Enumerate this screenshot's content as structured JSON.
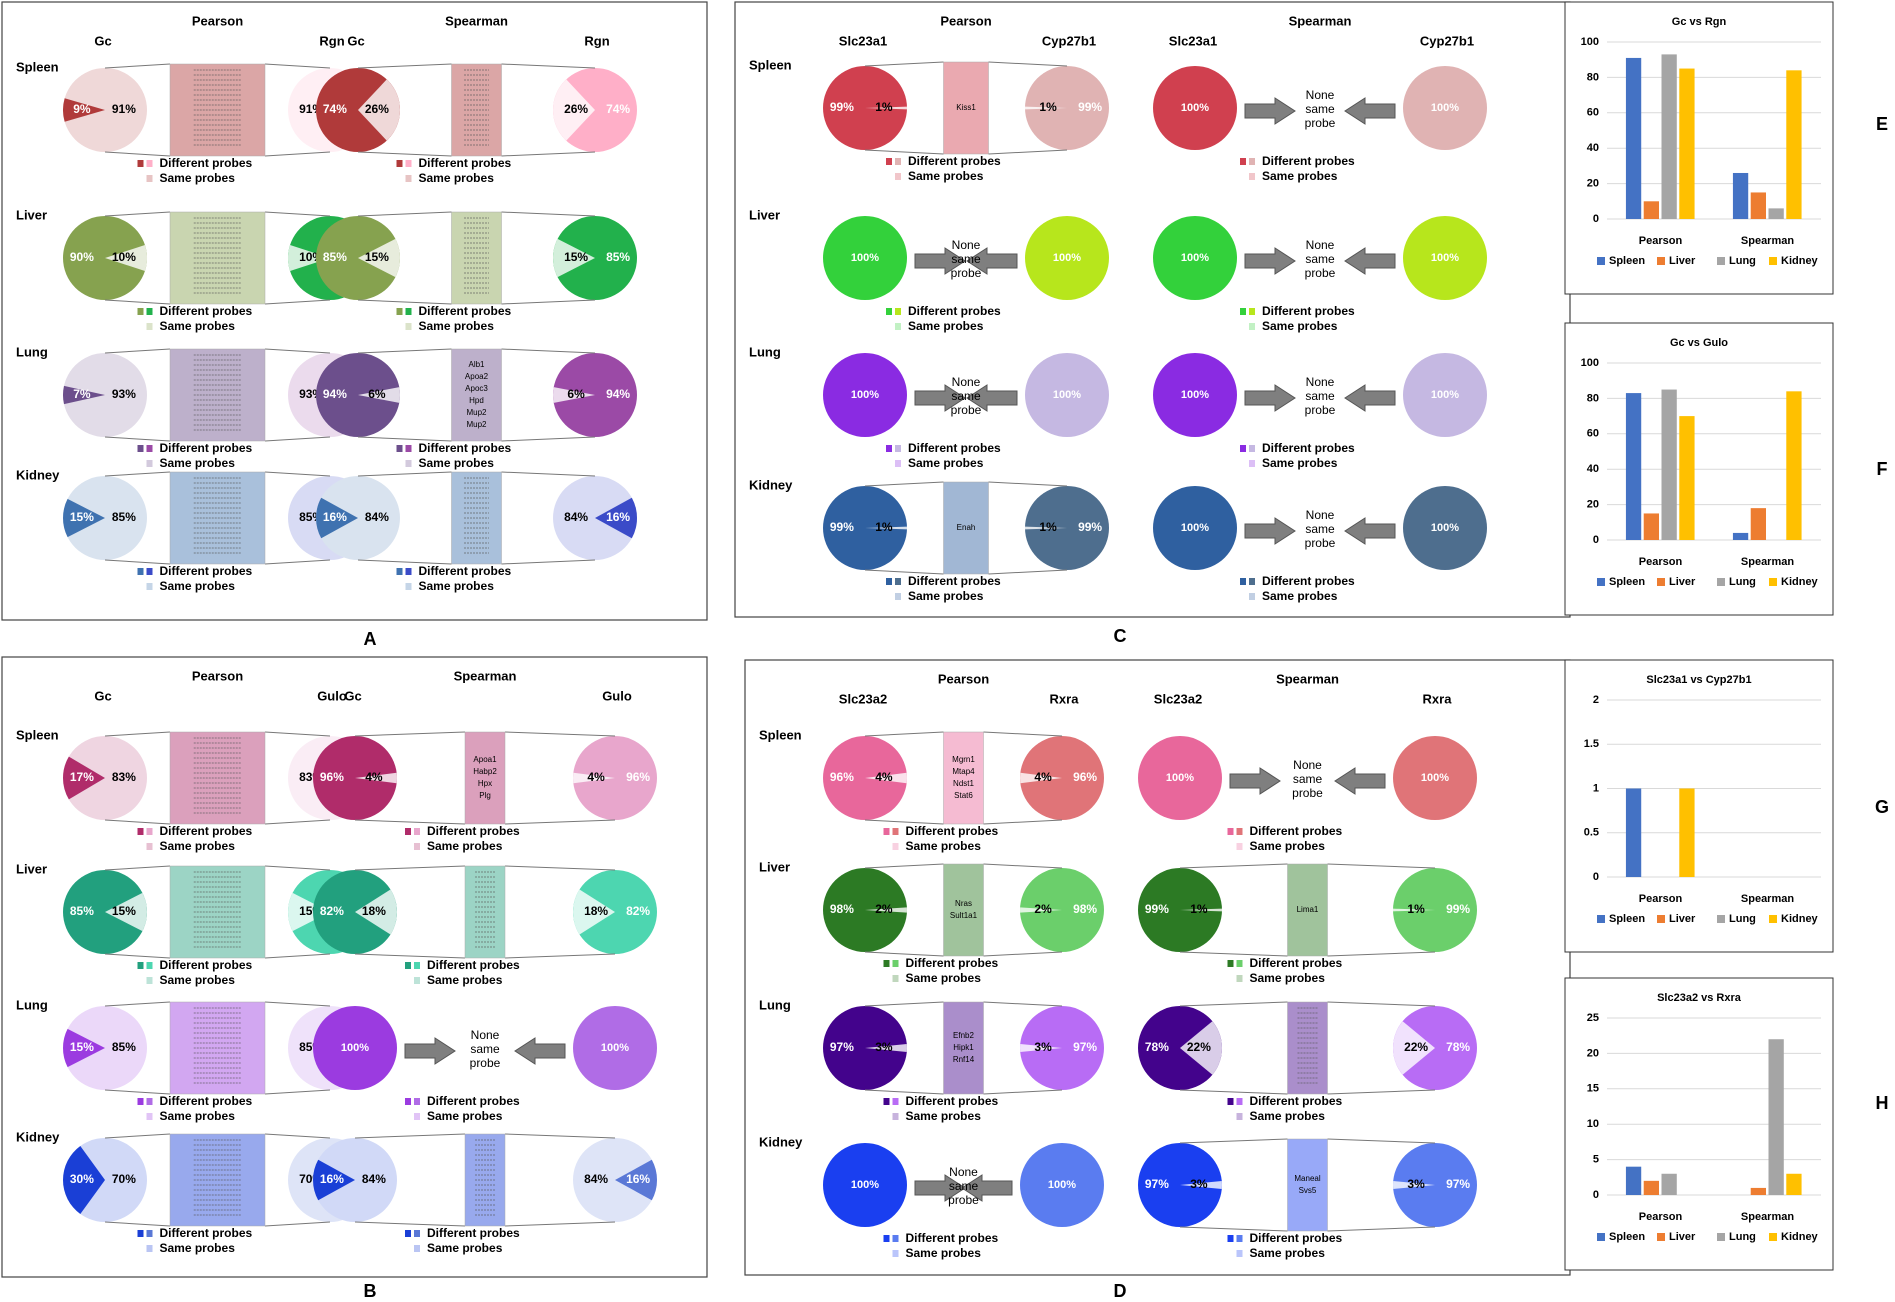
{
  "panel_labels": [
    "A",
    "B",
    "C",
    "D",
    "E",
    "F",
    "G",
    "H"
  ],
  "legend_different": "Different probes",
  "legend_same": "Same probes",
  "none_same_probe": [
    "None",
    "same",
    "probe"
  ],
  "colors": {
    "spleen_A": "#b03a3a",
    "spleen_A2": "#ffafc8",
    "liver_A": "#86a24f",
    "liver_A2": "#22b14c",
    "lung_A": "#6c4f8c",
    "lung_A2": "#9b4aa6",
    "kidney_A": "#3f72b0",
    "kidney_A2": "#3b4bc8",
    "spleen_B": "#b02c6a",
    "spleen_B2": "#e8a6cc",
    "liver_B": "#22a07e",
    "liver_B2": "#4dd6b0",
    "lung_B": "#9b3be0",
    "lung_B2": "#b06ce6",
    "kidney_B": "#1a3fd6",
    "kidney_B2": "#5a78d6",
    "spleen_C": "#d0404f",
    "spleen_C2": "#e0b3b3",
    "liver_C": "#33d13b",
    "liver_C2": "#b7e61c",
    "lung_C": "#8a2be2",
    "lung_C2": "#c5b8e2",
    "kidney_C": "#2f60a0",
    "kidney_C2": "#4e6e8e",
    "spleen_D": "#e8679b",
    "spleen_D2": "#e07478",
    "liver_D": "#2c7a24",
    "liver_D2": "#6bcf6b",
    "lung_D": "#43038c",
    "lung_D2": "#b86cf5",
    "kidney_D": "#1a3ff0",
    "kidney_D2": "#5a7cf0",
    "bar_spleen": "#4472c4",
    "bar_liver": "#ed7d31",
    "bar_lung": "#a5a5a5",
    "bar_kidney": "#ffc000"
  },
  "panels": {
    "A": {
      "methods": [
        "Pearson",
        "Spearman"
      ],
      "genes": [
        "Gc",
        "Rgn"
      ],
      "rows": [
        {
          "tissue": "Spleen",
          "pearson": {
            "left": [
              9,
              91
            ],
            "right": [
              91,
              9
            ],
            "labels": [
              "9%",
              "91%",
              "91%",
              "9%"
            ]
          },
          "spearman": {
            "left": [
              74,
              26
            ],
            "right": [
              26,
              74
            ],
            "labels": [
              "74%",
              "26%",
              "26%",
              "74%"
            ]
          }
        },
        {
          "tissue": "Liver",
          "pearson": {
            "left": [
              90,
              10
            ],
            "right": [
              10,
              90
            ],
            "labels": [
              "90%",
              "10%",
              "10%",
              "90%"
            ]
          },
          "spearman": {
            "left": [
              85,
              15
            ],
            "right": [
              15,
              85
            ],
            "labels": [
              "85%",
              "15%",
              "15%",
              "85%"
            ]
          }
        },
        {
          "tissue": "Lung",
          "pearson": {
            "left": [
              7,
              93
            ],
            "right": [
              93,
              7
            ],
            "labels": [
              "7%",
              "93%",
              "93%",
              "7%"
            ]
          },
          "spearman": {
            "left": [
              94,
              6
            ],
            "right": [
              6,
              94
            ],
            "labels": [
              "94%",
              "6%",
              "6%",
              "94%"
            ],
            "same_genes": [
              "Alb1",
              "Apoa2",
              "Apoc3",
              "Hpd",
              "Mup2",
              "Mup2"
            ]
          }
        },
        {
          "tissue": "Kidney",
          "pearson": {
            "left": [
              15,
              85
            ],
            "right": [
              85,
              15
            ],
            "labels": [
              "15%",
              "85%",
              "85%",
              "15%"
            ]
          },
          "spearman": {
            "left": [
              16,
              84
            ],
            "right": [
              84,
              16
            ],
            "labels": [
              "16%",
              "84%",
              "84%",
              "16%"
            ]
          }
        }
      ]
    },
    "B": {
      "methods": [
        "Pearson",
        "Spearman"
      ],
      "genes": [
        "Gc",
        "Gulo"
      ],
      "rows": [
        {
          "tissue": "Spleen",
          "pearson": {
            "left": [
              17,
              83
            ],
            "right": [
              83,
              17
            ],
            "labels": [
              "17%",
              "83%",
              "83%",
              "17%"
            ]
          },
          "spearman": {
            "left": [
              96,
              4
            ],
            "right": [
              4,
              96
            ],
            "labels": [
              "96%",
              "4%",
              "4%",
              "96%"
            ],
            "same_genes": [
              "Apoa1",
              "Habp2",
              "Hpx",
              "Plg"
            ]
          }
        },
        {
          "tissue": "Liver",
          "pearson": {
            "left": [
              85,
              15
            ],
            "right": [
              15,
              85
            ],
            "labels": [
              "85%",
              "15%",
              "15%",
              "85%"
            ]
          },
          "spearman": {
            "left": [
              82,
              18
            ],
            "right": [
              18,
              82
            ],
            "labels": [
              "82%",
              "18%",
              "18%",
              "82%"
            ]
          }
        },
        {
          "tissue": "Lung",
          "pearson": {
            "left": [
              15,
              85
            ],
            "right": [
              85,
              15
            ],
            "labels": [
              "15%",
              "85%",
              "85%",
              "15%"
            ]
          },
          "spearman": {
            "none": true,
            "labels": [
              "100%",
              "100%"
            ]
          }
        },
        {
          "tissue": "Kidney",
          "pearson": {
            "left": [
              30,
              70
            ],
            "right": [
              70,
              30
            ],
            "labels": [
              "30%",
              "70%",
              "70%",
              "30%"
            ]
          },
          "spearman": {
            "left": [
              16,
              84
            ],
            "right": [
              84,
              16
            ],
            "labels": [
              "16%",
              "84%",
              "84%",
              "16%"
            ]
          }
        }
      ]
    },
    "C": {
      "methods": [
        "Pearson",
        "Spearman"
      ],
      "genes": [
        "Slc23a1",
        "Cyp27b1"
      ],
      "rows": [
        {
          "tissue": "Spleen",
          "pearson": {
            "left": [
              99,
              1
            ],
            "right": [
              1,
              99
            ],
            "labels": [
              "99%",
              "1%",
              "1%",
              "99%"
            ],
            "same_genes": [
              "Kiss1"
            ]
          },
          "spearman": {
            "none": true,
            "labels": [
              "100%",
              "100%"
            ]
          }
        },
        {
          "tissue": "Liver",
          "pearson": {
            "none": true,
            "labels": [
              "100%",
              "100%"
            ]
          },
          "spearman": {
            "none": true,
            "labels": [
              "100%",
              "100%"
            ]
          }
        },
        {
          "tissue": "Lung",
          "pearson": {
            "none": true,
            "labels": [
              "100%",
              "100%"
            ]
          },
          "spearman": {
            "none": true,
            "labels": [
              "100%",
              "100%"
            ]
          }
        },
        {
          "tissue": "Kidney",
          "pearson": {
            "left": [
              99,
              1
            ],
            "right": [
              1,
              99
            ],
            "labels": [
              "99%",
              "1%",
              "1%",
              "99%"
            ],
            "same_genes": [
              "Enah"
            ]
          },
          "spearman": {
            "none": true,
            "labels": [
              "100%",
              "100%"
            ]
          }
        }
      ]
    },
    "D": {
      "methods": [
        "Pearson",
        "Spearman"
      ],
      "genes": [
        "Slc23a2",
        "Rxra"
      ],
      "rows": [
        {
          "tissue": "Spleen",
          "pearson": {
            "left": [
              96,
              4
            ],
            "right": [
              4,
              96
            ],
            "labels": [
              "96%",
              "4%",
              "4%",
              "96%"
            ],
            "same_genes": [
              "Mgrn1",
              "Mtap4",
              "Ndst1",
              "Stat6"
            ]
          },
          "spearman": {
            "none": true,
            "labels": [
              "100%",
              "100%"
            ]
          }
        },
        {
          "tissue": "Liver",
          "pearson": {
            "left": [
              98,
              2
            ],
            "right": [
              2,
              98
            ],
            "labels": [
              "98%",
              "2%",
              "2%",
              "98%"
            ],
            "same_genes": [
              "Nras",
              "Sult1a1"
            ]
          },
          "spearman": {
            "left": [
              99,
              1
            ],
            "right": [
              1,
              99
            ],
            "labels": [
              "99%",
              "1%",
              "1%",
              "99%"
            ],
            "same_genes": [
              "Lima1"
            ]
          }
        },
        {
          "tissue": "Lung",
          "pearson": {
            "left": [
              97,
              3
            ],
            "right": [
              3,
              97
            ],
            "labels": [
              "97%",
              "3%",
              "3%",
              "97%"
            ],
            "same_genes": [
              "Efnb2",
              "Hipk1",
              "Rnf14"
            ]
          },
          "spearman": {
            "left": [
              78,
              22
            ],
            "right": [
              22,
              78
            ],
            "labels": [
              "78%",
              "22%",
              "22%",
              "78%"
            ]
          }
        },
        {
          "tissue": "Kidney",
          "pearson": {
            "none": true,
            "labels": [
              "100%",
              "100%"
            ]
          },
          "spearman": {
            "left": [
              97,
              3
            ],
            "right": [
              3,
              97
            ],
            "labels": [
              "97%",
              "3%",
              "3%",
              "97%"
            ],
            "same_genes": [
              "Maneal",
              "Svs5"
            ]
          }
        }
      ]
    }
  },
  "chart_data": [
    {
      "panel": "E",
      "type": "bar",
      "title": "Gc vs Rgn",
      "categories": [
        "Pearson",
        "Spearman"
      ],
      "ylim": [
        0,
        100
      ],
      "yticks": [
        0,
        20,
        40,
        60,
        80,
        100
      ],
      "series": [
        {
          "name": "Spleen",
          "values": [
            91,
            26
          ]
        },
        {
          "name": "Liver",
          "values": [
            10,
            15
          ]
        },
        {
          "name": "Lung",
          "values": [
            93,
            6
          ]
        },
        {
          "name": "Kidney",
          "values": [
            85,
            84
          ]
        }
      ],
      "grid": true,
      "legend": "bottom"
    },
    {
      "panel": "F",
      "type": "bar",
      "title": "Gc vs Gulo",
      "categories": [
        "Pearson",
        "Spearman"
      ],
      "ylim": [
        0,
        100
      ],
      "yticks": [
        0,
        20,
        40,
        60,
        80,
        100
      ],
      "series": [
        {
          "name": "Spleen",
          "values": [
            83,
            4
          ]
        },
        {
          "name": "Liver",
          "values": [
            15,
            18
          ]
        },
        {
          "name": "Lung",
          "values": [
            85,
            0
          ]
        },
        {
          "name": "Kidney",
          "values": [
            70,
            84
          ]
        }
      ],
      "grid": true,
      "legend": "bottom"
    },
    {
      "panel": "G",
      "type": "bar",
      "title": "Slc23a1 vs Cyp27b1",
      "categories": [
        "Pearson",
        "Spearman"
      ],
      "ylim": [
        0,
        2
      ],
      "yticks": [
        0,
        0.5,
        1,
        1.5,
        2
      ],
      "series": [
        {
          "name": "Spleen",
          "values": [
            1,
            0
          ]
        },
        {
          "name": "Liver",
          "values": [
            0,
            0
          ]
        },
        {
          "name": "Lung",
          "values": [
            0,
            0
          ]
        },
        {
          "name": "Kidney",
          "values": [
            1,
            0
          ]
        }
      ],
      "grid": true,
      "legend": "bottom"
    },
    {
      "panel": "H",
      "type": "bar",
      "title": "Slc23a2 vs Rxra",
      "categories": [
        "Pearson",
        "Spearman"
      ],
      "ylim": [
        0,
        25
      ],
      "yticks": [
        0,
        5,
        10,
        15,
        20,
        25
      ],
      "series": [
        {
          "name": "Spleen",
          "values": [
            4,
            0
          ]
        },
        {
          "name": "Liver",
          "values": [
            2,
            1
          ]
        },
        {
          "name": "Lung",
          "values": [
            3,
            22
          ]
        },
        {
          "name": "Kidney",
          "values": [
            0,
            3
          ]
        }
      ],
      "grid": true,
      "legend": "bottom"
    }
  ]
}
